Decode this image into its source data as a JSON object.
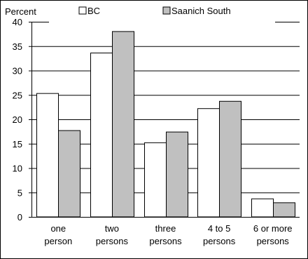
{
  "chart_data": {
    "type": "bar",
    "title": "",
    "xlabel": "",
    "ylabel": "Percent",
    "ylim": [
      0,
      40
    ],
    "yticks": [
      0,
      5,
      10,
      15,
      20,
      25,
      30,
      35,
      40
    ],
    "grid": true,
    "legend_position": "top",
    "categories": [
      [
        "one",
        "person"
      ],
      [
        "two",
        "persons"
      ],
      [
        "three",
        "persons"
      ],
      [
        "4 to 5",
        "persons"
      ],
      [
        "6 or more",
        "persons"
      ]
    ],
    "series": [
      {
        "name": "BC",
        "color": "#ffffff",
        "values": [
          25.3,
          33.6,
          15.2,
          22.2,
          3.7
        ]
      },
      {
        "name": "Saanich South",
        "color": "#c0c0c0",
        "values": [
          17.7,
          38.0,
          17.4,
          23.7,
          2.9
        ]
      }
    ]
  }
}
